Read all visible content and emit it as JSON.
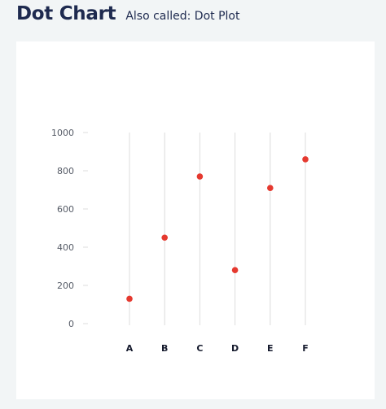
{
  "header": {
    "title": "Dot Chart",
    "subtitle": "Also called: Dot Plot"
  },
  "colors": {
    "title": "#1e2a4f",
    "dot": "#e5392f",
    "gridline": "#dcdcdc",
    "background": "#f2f5f6",
    "card": "#ffffff"
  },
  "chart_data": {
    "type": "scatter",
    "title": "",
    "xlabel": "",
    "ylabel": "",
    "categories": [
      "A",
      "B",
      "C",
      "D",
      "E",
      "F"
    ],
    "values": [
      130,
      450,
      770,
      280,
      710,
      860
    ],
    "ylim": [
      0,
      1000
    ],
    "yticks": [
      0,
      200,
      400,
      600,
      800,
      1000
    ],
    "grid": "vertical lines per category",
    "legend": "none"
  }
}
